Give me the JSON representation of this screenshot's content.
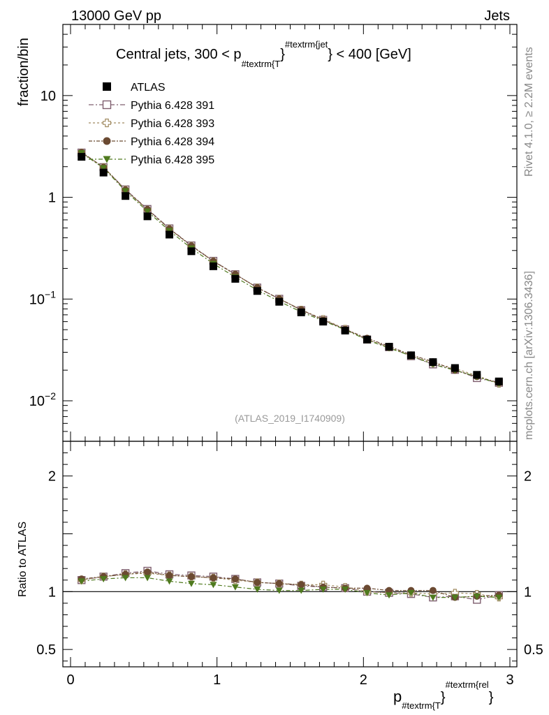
{
  "header": {
    "left": "13000 GeV pp",
    "right": "Jets",
    "side_top": "Rivet 4.1.0, ≥ 2.2M events",
    "side_bottom": "mcplots.cern.ch [arXiv:1306.3436]",
    "watermark": "(ATLAS_2019_I1740909)"
  },
  "chart_data": {
    "type": "scatter",
    "title": "Central jets, 300 < p",
    "title_sub": "#textrm{T",
    "title_sup": "#textrm{jet",
    "title_tail": "} < 400 [GeV]",
    "ylabel": "fraction/bin",
    "ratio_ylabel": "Ratio to ATLAS",
    "xlabel_main": "p",
    "xlabel_sub": "#textrm{T",
    "xlabel_sup": "#textrm{rel",
    "xlabel_close": "}",
    "xlim": [
      0,
      3
    ],
    "ylim": [
      0.004,
      50
    ],
    "ratio_ylim": [
      0.35,
      2.3
    ],
    "x_ticks": [
      "0",
      "1",
      "2",
      "3"
    ],
    "y_ticks": [
      {
        "value": 10,
        "label": "10"
      },
      {
        "value": 1,
        "label": "1"
      },
      {
        "value": 0.1,
        "base": "10",
        "exp": "−1"
      },
      {
        "value": 0.01,
        "base": "10",
        "exp": "−2"
      }
    ],
    "ratio_ticks": [
      {
        "value": 2,
        "label": "2"
      },
      {
        "value": 1,
        "label": "1"
      },
      {
        "value": 0.5,
        "label": "0.5"
      }
    ],
    "x": [
      0.075,
      0.225,
      0.375,
      0.525,
      0.675,
      0.825,
      0.975,
      1.125,
      1.275,
      1.425,
      1.575,
      1.725,
      1.875,
      2.025,
      2.175,
      2.325,
      2.475,
      2.625,
      2.775,
      2.925
    ],
    "reference": {
      "name": "ATLAS",
      "color": "#000000",
      "marker": "square",
      "values": [
        2.5,
        1.75,
        1.03,
        0.65,
        0.43,
        0.295,
        0.21,
        0.158,
        0.12,
        0.094,
        0.074,
        0.06,
        0.049,
        0.04,
        0.034,
        0.028,
        0.024,
        0.021,
        0.018,
        0.0155
      ]
    },
    "series": [
      {
        "name": "Pythia 6.428 391",
        "color": "#7f5f6f",
        "marker": "open-square",
        "dash": "7,3,2,3",
        "ratio": [
          1.1,
          1.13,
          1.16,
          1.18,
          1.15,
          1.14,
          1.13,
          1.11,
          1.08,
          1.07,
          1.05,
          1.04,
          1.03,
          1.0,
          0.99,
          0.98,
          0.95,
          0.96,
          0.93,
          0.97
        ]
      },
      {
        "name": "Pythia 6.428 393",
        "color": "#a08a60",
        "marker": "open-cross",
        "dash": "3,3",
        "ratio": [
          1.1,
          1.13,
          1.15,
          1.16,
          1.14,
          1.13,
          1.12,
          1.1,
          1.08,
          1.07,
          1.06,
          1.06,
          1.04,
          1.0,
          0.99,
          0.99,
          0.98,
          0.99,
          0.98,
          0.95
        ]
      },
      {
        "name": "Pythia 6.428 394",
        "color": "#6b4a32",
        "marker": "circle",
        "dash": "5,2,2,2",
        "ratio": [
          1.11,
          1.13,
          1.15,
          1.17,
          1.14,
          1.13,
          1.12,
          1.11,
          1.08,
          1.07,
          1.06,
          1.04,
          1.03,
          1.03,
          1.01,
          1.01,
          1.01,
          0.95,
          0.96,
          0.97
        ]
      },
      {
        "name": "Pythia 6.428 395",
        "color": "#4f7a1e",
        "marker": "triangle-down",
        "dash": "6,3,2,3",
        "ratio": [
          1.09,
          1.11,
          1.12,
          1.12,
          1.09,
          1.07,
          1.06,
          1.04,
          1.02,
          1.01,
          1.01,
          1.02,
          1.02,
          0.99,
          0.97,
          0.99,
          0.95,
          0.95,
          0.96,
          0.95
        ]
      }
    ]
  }
}
